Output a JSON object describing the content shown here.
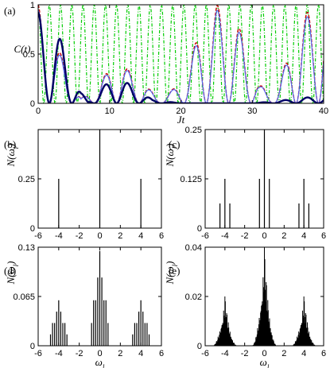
{
  "chart_data": [
    {
      "type": "line",
      "panel_label": "(a)",
      "xlabel": "Jt",
      "ylabel": "C(t)",
      "xlim": [
        0,
        40
      ],
      "ylim": [
        0,
        1
      ],
      "xticks": [
        0,
        10,
        20,
        30,
        40
      ],
      "yticks": [
        0,
        0.5,
        1
      ],
      "xtick_labels": [
        "0",
        "10",
        "20",
        "30",
        "40"
      ],
      "ytick_labels": [
        "0",
        "0.5",
        "1"
      ],
      "grid": false,
      "series": [
        {
          "color": "#00cc00",
          "style": "dash-dot",
          "freq": 2.0,
          "amplitude": 1.0,
          "envelope": "constant"
        },
        {
          "color": "#cc0000",
          "style": "dashed",
          "freq": 1.0,
          "amplitude": 1.0,
          "envelope": "revival"
        },
        {
          "color": "#5566ee",
          "style": "solid",
          "freq": 1.0,
          "amplitude": 0.95,
          "envelope": "revival"
        },
        {
          "color": "#000066",
          "style": "solid-thick",
          "freq": 1.0,
          "amplitude": 0.92,
          "envelope": "decay"
        }
      ],
      "envelope_points": {
        "revival": [
          [
            0,
            1.0
          ],
          [
            6,
            0.05
          ],
          [
            8,
            0.15
          ],
          [
            11,
            0.45
          ],
          [
            14,
            0.25
          ],
          [
            17,
            0.05
          ],
          [
            20,
            0.2
          ],
          [
            23,
            0.8
          ],
          [
            25,
            1.0
          ],
          [
            28,
            0.8
          ],
          [
            31,
            0.2
          ],
          [
            33,
            0.05
          ],
          [
            37,
            0.9
          ],
          [
            40,
            1.0
          ]
        ],
        "decay": [
          [
            0,
            1.0
          ],
          [
            2,
            0.9
          ],
          [
            4,
            0.55
          ],
          [
            6,
            0.12
          ],
          [
            7,
            0.02
          ],
          [
            8,
            0.12
          ],
          [
            11,
            0.3
          ],
          [
            13,
            0.2
          ],
          [
            16,
            0.04
          ],
          [
            20,
            0.0
          ],
          [
            30,
            0.0
          ],
          [
            34,
            0.03
          ],
          [
            37,
            0.06
          ],
          [
            40,
            0.08
          ]
        ]
      }
    },
    {
      "type": "bar",
      "panel_label": "(b)",
      "xlabel": "",
      "ylabel": "N(ω_l)",
      "xlim": [
        -6,
        6
      ],
      "ylim": [
        0,
        0.5
      ],
      "xticks": [
        -6,
        -4,
        -2,
        0,
        2,
        4,
        6
      ],
      "xtick_labels": [
        "-6",
        "-4",
        "-2",
        "0",
        "2",
        "4",
        "6"
      ],
      "yticks": [
        0,
        0.25
      ],
      "ytick_labels": [
        "0",
        "0.25"
      ],
      "x": [
        -4,
        0,
        4
      ],
      "values": [
        0.25,
        0.5,
        0.25
      ]
    },
    {
      "type": "bar",
      "panel_label": "(c)",
      "xlabel": "",
      "ylabel": "N(ω_l)",
      "xlim": [
        -6,
        6
      ],
      "ylim": [
        0,
        0.25
      ],
      "xticks": [
        -6,
        -4,
        -2,
        0,
        2,
        4,
        6
      ],
      "xtick_labels": [
        "-6",
        "-4",
        "-2",
        "0",
        "2",
        "4",
        "6"
      ],
      "yticks": [
        0,
        0.125,
        0.25
      ],
      "ytick_labels": [
        "0",
        "0.125",
        "0.25"
      ],
      "x": [
        -4.5,
        -4,
        -3.5,
        -0.5,
        0,
        0.5,
        3.5,
        4,
        4.5
      ],
      "values": [
        0.0625,
        0.125,
        0.0625,
        0.125,
        0.25,
        0.125,
        0.0625,
        0.125,
        0.0625
      ]
    },
    {
      "type": "bar",
      "panel_label": "(d)",
      "xlabel": "ω_l",
      "ylabel": "N(ω_l)",
      "xlim": [
        -6,
        6
      ],
      "ylim": [
        0,
        0.13
      ],
      "xticks": [
        -6,
        -4,
        -2,
        0,
        2,
        4,
        6
      ],
      "xtick_labels": [
        "-6",
        "-4",
        "-2",
        "0",
        "2",
        "4",
        "6"
      ],
      "yticks": [
        0,
        0.065,
        0.13
      ],
      "ytick_labels": [
        "0",
        "0.065",
        "0.13"
      ],
      "x": [
        -4.8,
        -4.6,
        -4.4,
        -4.2,
        -4.0,
        -3.8,
        -3.6,
        -3.4,
        -3.2,
        -0.8,
        -0.6,
        -0.4,
        -0.2,
        0.0,
        0.2,
        0.4,
        0.6,
        0.8,
        3.2,
        3.4,
        3.6,
        3.8,
        4.0,
        4.2,
        4.4,
        4.6,
        4.8
      ],
      "values": [
        0.015,
        0.03,
        0.03,
        0.045,
        0.06,
        0.045,
        0.03,
        0.03,
        0.015,
        0.03,
        0.06,
        0.06,
        0.09,
        0.125,
        0.09,
        0.06,
        0.06,
        0.03,
        0.015,
        0.03,
        0.03,
        0.045,
        0.06,
        0.045,
        0.03,
        0.03,
        0.015
      ]
    },
    {
      "type": "bar",
      "panel_label": "(e)",
      "xlabel": "ω_l",
      "ylabel": "N(ω_l)",
      "xlim": [
        -6,
        6
      ],
      "ylim": [
        0,
        0.04
      ],
      "xticks": [
        -6,
        -4,
        -2,
        0,
        2,
        4,
        6
      ],
      "xtick_labels": [
        "-6",
        "-4",
        "-2",
        "0",
        "2",
        "4",
        "6"
      ],
      "yticks": [
        0,
        0.02,
        0.04
      ],
      "ytick_labels": [
        "0",
        "0.02",
        "0.04"
      ],
      "clusters": [
        {
          "center": -4,
          "halfwidth": 1.3,
          "peak": 0.02
        },
        {
          "center": 0,
          "halfwidth": 1.3,
          "peak": 0.039
        },
        {
          "center": 4,
          "halfwidth": 1.3,
          "peak": 0.02
        }
      ]
    }
  ]
}
